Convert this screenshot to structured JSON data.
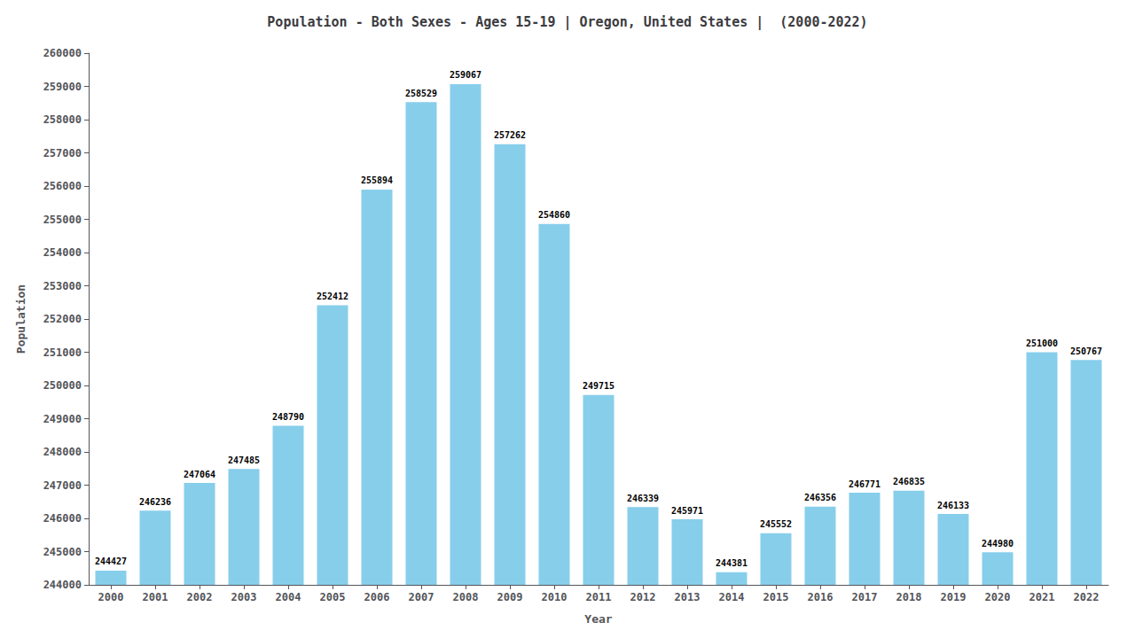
{
  "chart_data": {
    "type": "bar",
    "title": "Population - Both Sexes - Ages 15-19 | Oregon, United States |  (2000-2022)",
    "x_label": "Year",
    "y_label": "Population",
    "categories": [
      "2000",
      "2001",
      "2002",
      "2003",
      "2004",
      "2005",
      "2006",
      "2007",
      "2008",
      "2009",
      "2010",
      "2011",
      "2012",
      "2013",
      "2014",
      "2015",
      "2016",
      "2017",
      "2018",
      "2019",
      "2020",
      "2021",
      "2022"
    ],
    "values": [
      244427,
      246236,
      247064,
      247485,
      248790,
      252412,
      255894,
      258529,
      259067,
      257262,
      254860,
      249715,
      246339,
      245971,
      244381,
      245552,
      246356,
      246771,
      246835,
      246133,
      244980,
      251000,
      250767
    ],
    "color": "#87ceeb",
    "ylim": [
      244000,
      260000
    ],
    "yticks": [
      244000,
      245000,
      246000,
      247000,
      248000,
      249000,
      250000,
      251000,
      252000,
      253000,
      254000,
      255000,
      256000,
      257000,
      258000,
      259000,
      260000
    ],
    "data_labels": true,
    "grid": false
  }
}
